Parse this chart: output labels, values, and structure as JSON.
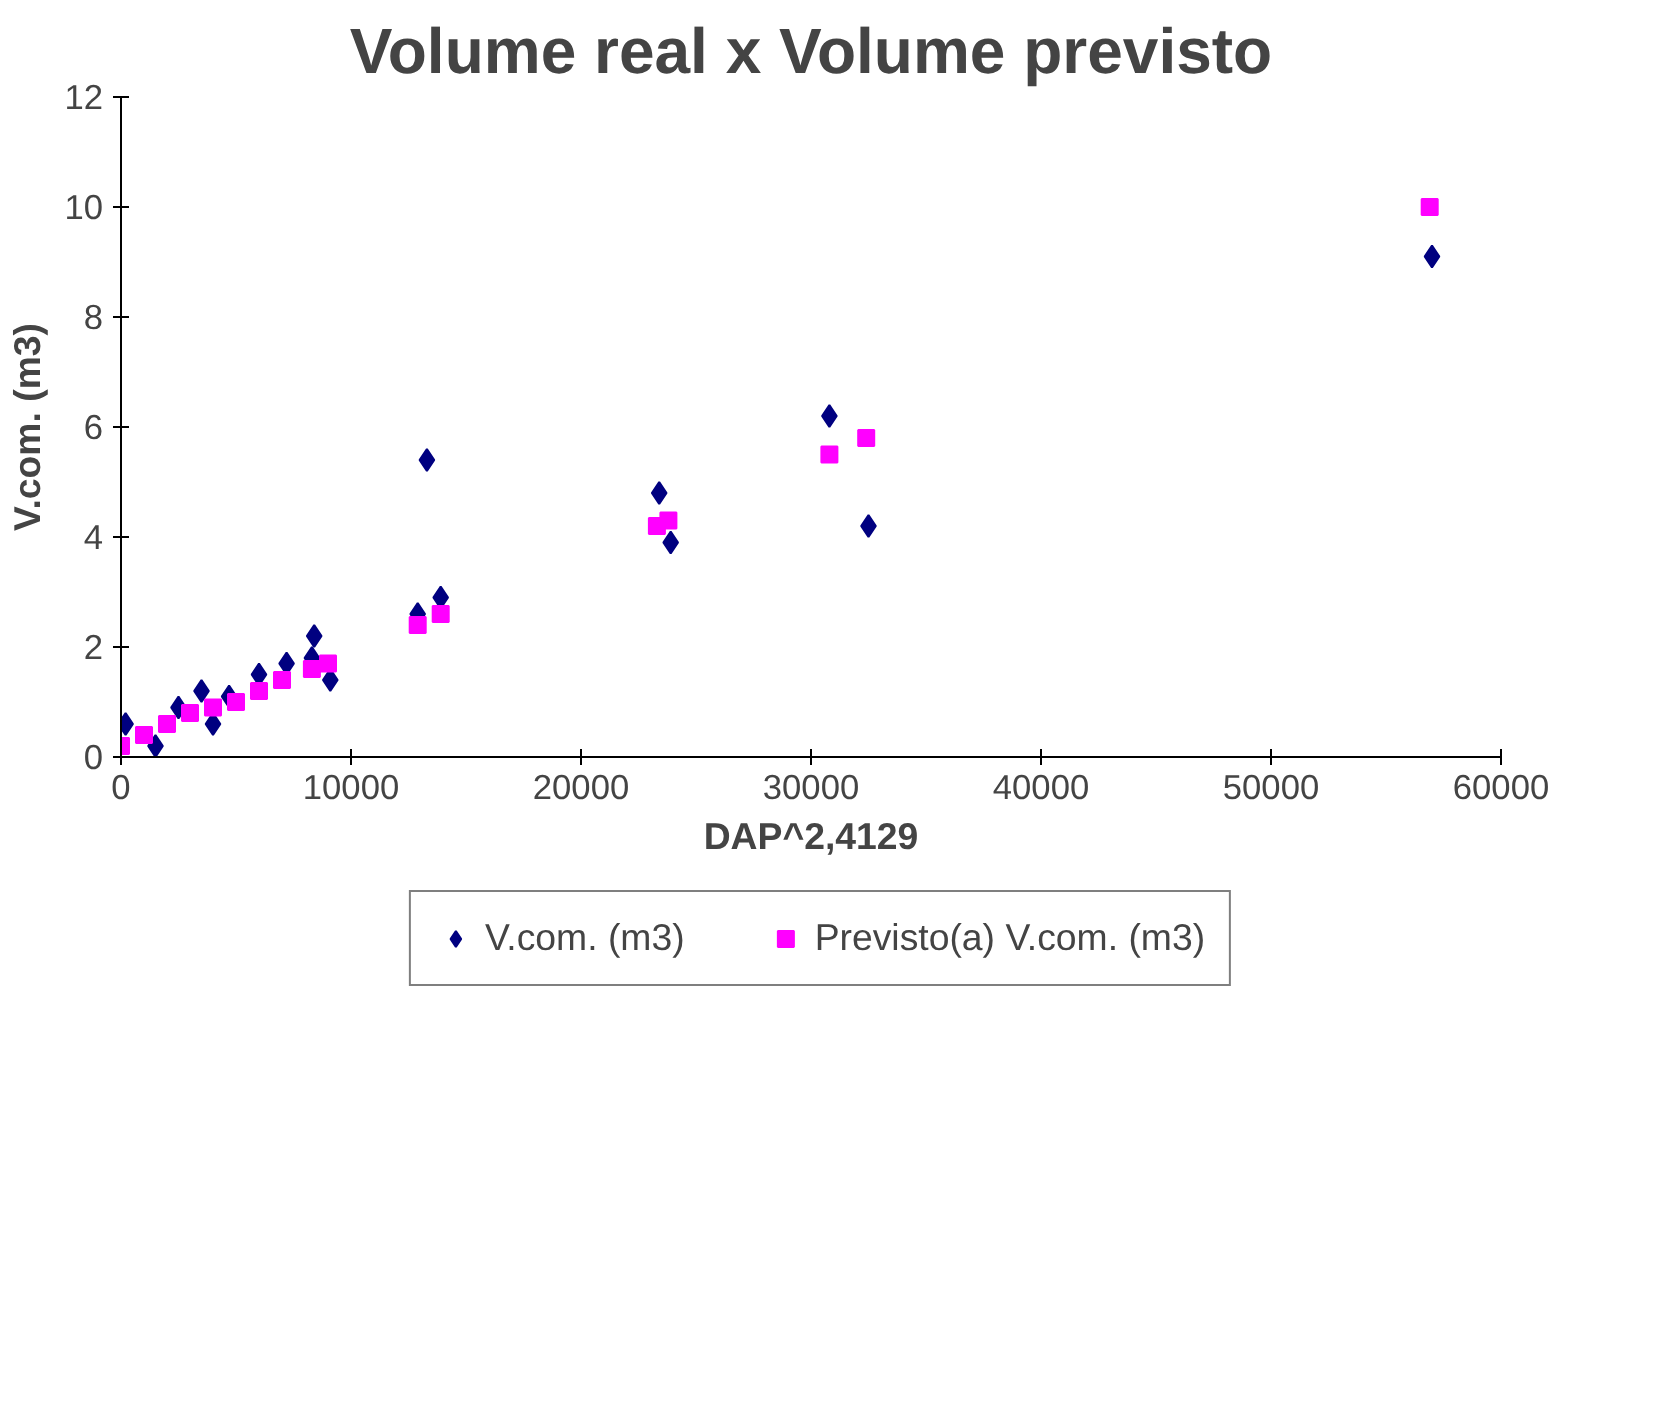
{
  "chart_data": {
    "type": "scatter",
    "title": "Volume real x Volume previsto",
    "xlabel": "DAP^2,4129",
    "ylabel": "V.com. (m3)",
    "xlim": [
      0,
      60000
    ],
    "xticks": [
      0,
      10000,
      20000,
      30000,
      40000,
      50000,
      60000
    ],
    "ylim": [
      0,
      12
    ],
    "yticks": [
      0,
      2,
      4,
      6,
      8,
      10,
      12
    ],
    "grid": false,
    "legend": "bottom",
    "series": [
      {
        "name": "V.com. (m3)",
        "color": "#000080",
        "marker": "diamond",
        "x": [
          57000,
          30800,
          32500,
          23400,
          23900,
          13300,
          13900,
          12900,
          8400,
          8300,
          9100,
          7200,
          6000,
          3500,
          2500,
          1500,
          4000,
          200,
          4700
        ],
        "values": [
          9.1,
          6.2,
          4.2,
          4.8,
          3.9,
          5.4,
          2.9,
          2.6,
          2.2,
          1.8,
          1.4,
          1.7,
          1.5,
          1.2,
          0.9,
          0.2,
          0.6,
          0.6,
          1.1
        ]
      },
      {
        "name": "Previsto(a) V.com. (m3)",
        "color": "#ff00ff",
        "marker": "square",
        "x": [
          56900,
          30800,
          32400,
          23300,
          23800,
          12900,
          13900,
          8300,
          9000,
          7000,
          6000,
          5000,
          4000,
          3000,
          2000,
          1000,
          0
        ],
        "values": [
          10.0,
          5.5,
          5.8,
          4.2,
          4.3,
          2.4,
          2.6,
          1.6,
          1.7,
          1.4,
          1.2,
          1.0,
          0.9,
          0.8,
          0.6,
          0.4,
          0.2
        ]
      }
    ]
  }
}
